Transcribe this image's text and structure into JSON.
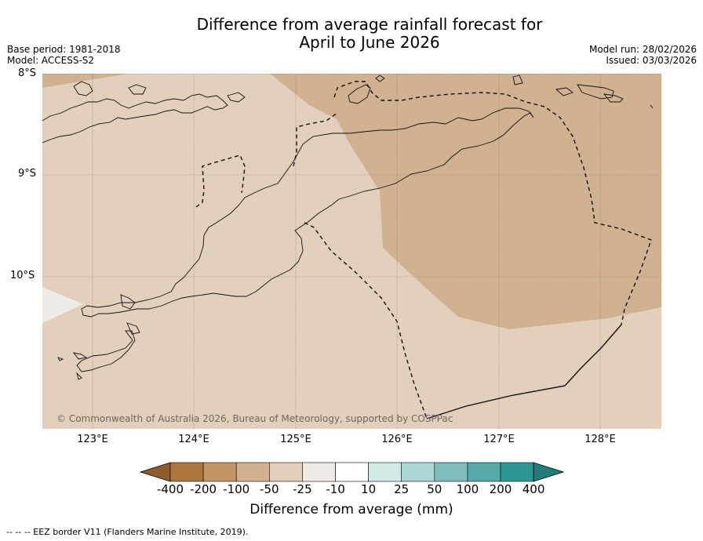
{
  "title": {
    "line1": "Difference from average rainfall forecast for",
    "line2": "April to June 2026"
  },
  "meta": {
    "base_period": "Base period: 1981-2018",
    "model": "Model: ACCESS-S2",
    "model_run": "Model run: 28/02/2026",
    "issued": "Issued: 03/03/2026"
  },
  "map": {
    "lat_labels": [
      "8°S",
      "9°S",
      "10°S"
    ],
    "lon_labels": [
      "123°E",
      "124°E",
      "125°E",
      "126°E",
      "127°E",
      "128°E"
    ],
    "copyright": "© Commonwealth of Australia 2026, Bureau of Meteorology, supported by COSPPac",
    "colors": {
      "light_brown": "#e2cfbc",
      "mid_brown": "#d0b190",
      "near_white": "#efebe6"
    }
  },
  "colorbar": {
    "ticks": [
      "-400",
      "-200",
      "-100",
      "-50",
      "-25",
      "-10",
      "10",
      "25",
      "50",
      "100",
      "200",
      "400"
    ],
    "colors": [
      "#8f5c2c",
      "#ac763f",
      "#c29467",
      "#d3b190",
      "#e2cfbc",
      "#efebe6",
      "#ffffff",
      "#d4eae8",
      "#acd6d4",
      "#7fbdbb",
      "#57a9a8",
      "#2e9794",
      "#227d7a"
    ],
    "label": "Difference from average (mm)"
  },
  "footnote": "--  --  -- EEZ border V11 (Flanders Marine Institute, 2019)."
}
